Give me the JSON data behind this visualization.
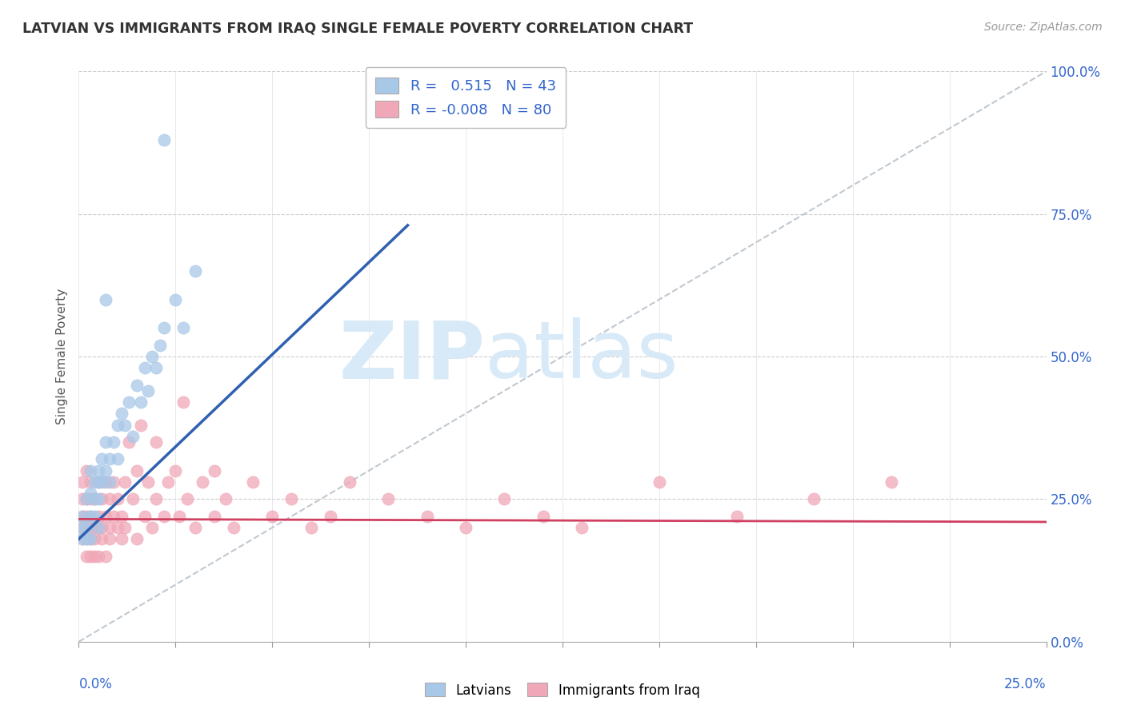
{
  "title": "LATVIAN VS IMMIGRANTS FROM IRAQ SINGLE FEMALE POVERTY CORRELATION CHART",
  "source": "Source: ZipAtlas.com",
  "ylabel": "Single Female Poverty",
  "latvian_R": 0.515,
  "latvian_N": 43,
  "iraq_R": -0.008,
  "iraq_N": 80,
  "latvian_color": "#a8c8e8",
  "iraq_color": "#f0a8b8",
  "latvian_line_color": "#3060b0",
  "iraq_line_color": "#d04060",
  "ref_line_color": "#c0c8d0",
  "legend_R_color": "#3366cc",
  "background_color": "#ffffff",
  "watermark_zip": "ZIP",
  "watermark_atlas": "atlas",
  "watermark_color": "#d8eaf8",
  "xlim": [
    0.0,
    0.25
  ],
  "ylim": [
    0.0,
    1.0
  ],
  "yticks": [
    0.0,
    0.25,
    0.5,
    0.75,
    1.0
  ],
  "ytick_labels": [
    "0.0%",
    "25.0%",
    "50.0%",
    "75.0%",
    "100.0%"
  ],
  "lat_x": [
    0.001,
    0.001,
    0.001,
    0.002,
    0.002,
    0.002,
    0.003,
    0.003,
    0.003,
    0.003,
    0.004,
    0.004,
    0.004,
    0.005,
    0.005,
    0.005,
    0.005,
    0.006,
    0.006,
    0.007,
    0.007,
    0.008,
    0.008,
    0.009,
    0.01,
    0.01,
    0.011,
    0.012,
    0.013,
    0.014,
    0.015,
    0.016,
    0.017,
    0.018,
    0.019,
    0.02,
    0.021,
    0.022,
    0.025,
    0.027,
    0.03,
    0.022,
    0.007
  ],
  "lat_y": [
    0.2,
    0.22,
    0.18,
    0.25,
    0.2,
    0.18,
    0.22,
    0.26,
    0.3,
    0.18,
    0.28,
    0.25,
    0.22,
    0.3,
    0.28,
    0.25,
    0.2,
    0.32,
    0.28,
    0.35,
    0.3,
    0.32,
    0.28,
    0.35,
    0.38,
    0.32,
    0.4,
    0.38,
    0.42,
    0.36,
    0.45,
    0.42,
    0.48,
    0.44,
    0.5,
    0.48,
    0.52,
    0.55,
    0.6,
    0.55,
    0.65,
    0.88,
    0.6
  ],
  "iraq_x": [
    0.001,
    0.001,
    0.001,
    0.001,
    0.001,
    0.002,
    0.002,
    0.002,
    0.002,
    0.002,
    0.002,
    0.003,
    0.003,
    0.003,
    0.003,
    0.003,
    0.003,
    0.004,
    0.004,
    0.004,
    0.004,
    0.005,
    0.005,
    0.005,
    0.005,
    0.006,
    0.006,
    0.006,
    0.007,
    0.007,
    0.007,
    0.008,
    0.008,
    0.008,
    0.009,
    0.009,
    0.01,
    0.01,
    0.011,
    0.011,
    0.012,
    0.012,
    0.013,
    0.014,
    0.015,
    0.015,
    0.016,
    0.017,
    0.018,
    0.019,
    0.02,
    0.02,
    0.022,
    0.023,
    0.025,
    0.026,
    0.028,
    0.03,
    0.032,
    0.035,
    0.038,
    0.04,
    0.045,
    0.05,
    0.055,
    0.06,
    0.065,
    0.07,
    0.08,
    0.09,
    0.1,
    0.11,
    0.12,
    0.13,
    0.15,
    0.17,
    0.19,
    0.21,
    0.027,
    0.035
  ],
  "iraq_y": [
    0.18,
    0.22,
    0.25,
    0.2,
    0.28,
    0.15,
    0.2,
    0.25,
    0.18,
    0.3,
    0.22,
    0.15,
    0.2,
    0.25,
    0.18,
    0.28,
    0.22,
    0.15,
    0.2,
    0.25,
    0.18,
    0.22,
    0.28,
    0.2,
    0.15,
    0.25,
    0.2,
    0.18,
    0.22,
    0.28,
    0.15,
    0.25,
    0.2,
    0.18,
    0.22,
    0.28,
    0.2,
    0.25,
    0.22,
    0.18,
    0.28,
    0.2,
    0.35,
    0.25,
    0.3,
    0.18,
    0.38,
    0.22,
    0.28,
    0.2,
    0.35,
    0.25,
    0.22,
    0.28,
    0.3,
    0.22,
    0.25,
    0.2,
    0.28,
    0.22,
    0.25,
    0.2,
    0.28,
    0.22,
    0.25,
    0.2,
    0.22,
    0.28,
    0.25,
    0.22,
    0.2,
    0.25,
    0.22,
    0.2,
    0.28,
    0.22,
    0.25,
    0.28,
    0.42,
    0.3
  ],
  "lat_trend_x": [
    0.0,
    0.085
  ],
  "lat_trend_y": [
    0.18,
    0.73
  ],
  "iraq_trend_x": [
    0.0,
    0.25
  ],
  "iraq_trend_y": [
    0.215,
    0.21
  ]
}
